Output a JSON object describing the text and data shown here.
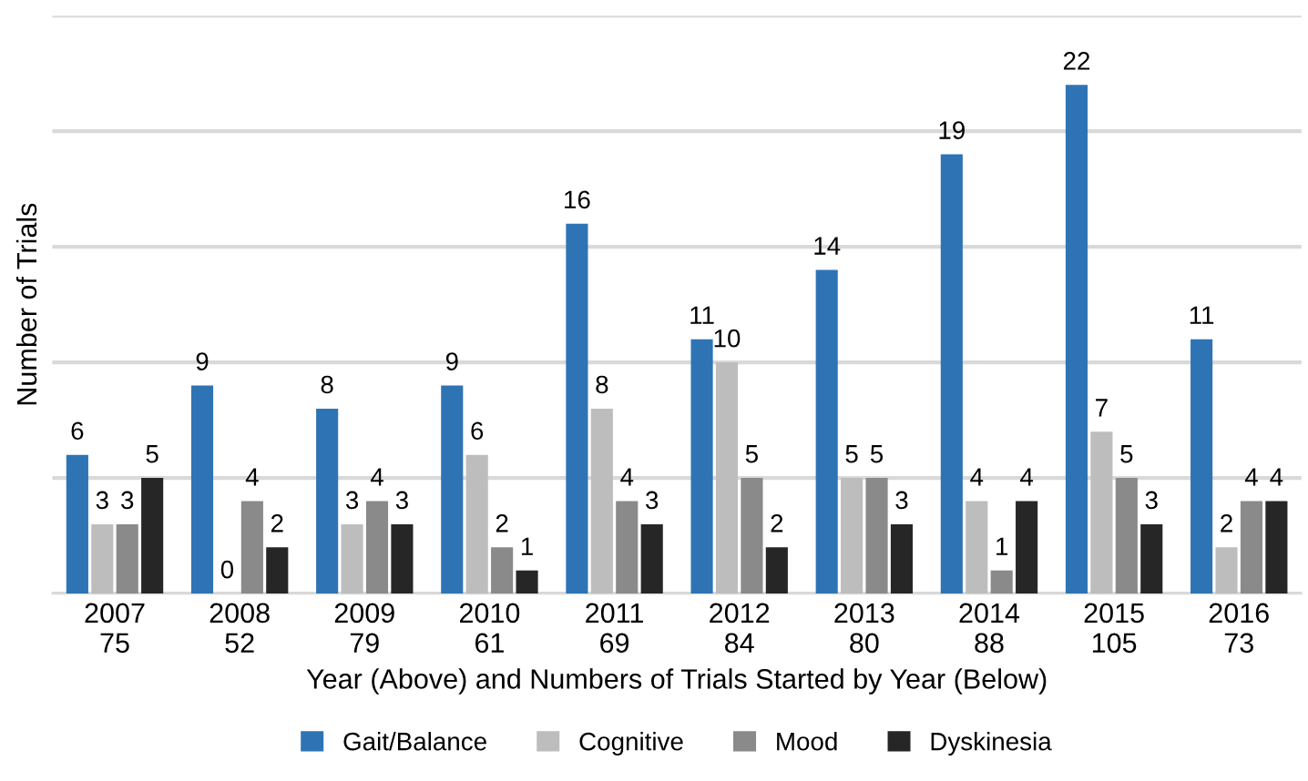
{
  "chart_data": {
    "type": "bar",
    "xlabel": "Year (Above) and Numbers of Trials Started by Year (Below)",
    "ylabel": "Number of Trials",
    "categories": [
      "2007\n75",
      "2008\n52",
      "2009\n79",
      "2010\n61",
      "2011\n69",
      "2012\n84",
      "2013\n80",
      "2014\n88",
      "2015\n105",
      "2016\n73"
    ],
    "series": [
      {
        "name": "Gait/Balance",
        "color": "#2e74b5",
        "values": [
          6,
          9,
          8,
          9,
          16,
          11,
          14,
          19,
          22,
          11
        ]
      },
      {
        "name": "Cognitive",
        "color": "#bdbdbd",
        "values": [
          3,
          0,
          3,
          6,
          8,
          10,
          5,
          4,
          7,
          2
        ]
      },
      {
        "name": "Mood",
        "color": "#8a8a8a",
        "values": [
          3,
          4,
          4,
          2,
          4,
          5,
          5,
          1,
          5,
          4
        ]
      },
      {
        "name": "Dyskinesia",
        "color": "#262626",
        "values": [
          5,
          2,
          3,
          1,
          3,
          2,
          3,
          4,
          3,
          4
        ]
      }
    ],
    "ylim": [
      0,
      25
    ],
    "yticks": [
      {
        "value": 0,
        "label": null
      },
      {
        "value": 5,
        "label": null
      },
      {
        "value": 10,
        "label": null
      },
      {
        "value": 15,
        "label": null
      },
      {
        "value": 20,
        "label": null
      },
      {
        "value": 25,
        "label": null
      }
    ],
    "grid": "y",
    "legend": "bottom",
    "data_labels": true,
    "tick_labels": "x"
  }
}
